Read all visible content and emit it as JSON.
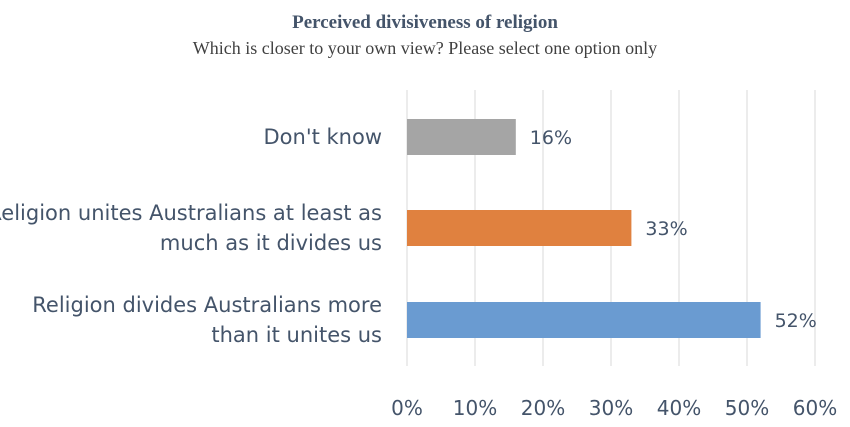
{
  "chart_data": {
    "type": "bar",
    "orientation": "horizontal",
    "title": "Perceived divisiveness of religion",
    "subtitle": "Which is closer to your own view? Please select one option only",
    "categories": [
      [
        "Don't know"
      ],
      [
        "Religion unites Australians at least as",
        "much as it divides us"
      ],
      [
        "Religion divides Australians more",
        "than it unites us"
      ]
    ],
    "values": [
      16,
      33,
      52
    ],
    "data_labels": [
      "16%",
      "33%",
      "52%"
    ],
    "colors": [
      "#a5a5a5",
      "#e0813f",
      "#6a9bd1"
    ],
    "xlim": [
      0,
      60
    ],
    "xticks": [
      0,
      10,
      20,
      30,
      40,
      50,
      60
    ],
    "xtick_labels": [
      "0%",
      "10%",
      "20%",
      "30%",
      "40%",
      "50%",
      "60%"
    ],
    "grid": true,
    "legend": "none"
  }
}
